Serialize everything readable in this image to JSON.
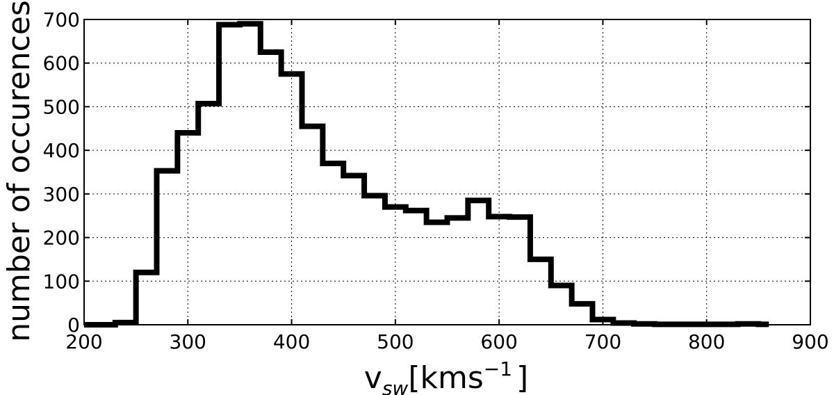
{
  "chart_data": {
    "type": "histogram",
    "title": "",
    "xlabel": {
      "base": "v",
      "subscript": "sw",
      "unit_open": "[kms",
      "unit_exp": "−1",
      "unit_close": "]"
    },
    "ylabel": "number of occurences",
    "xlim": [
      200,
      900
    ],
    "ylim": [
      0,
      700
    ],
    "x_ticks": [
      "200",
      "300",
      "400",
      "500",
      "600",
      "700",
      "800",
      "900"
    ],
    "y_ticks": [
      "0",
      "100",
      "200",
      "300",
      "400",
      "500",
      "600",
      "700"
    ],
    "grid": true,
    "bin_edges": [
      200,
      230,
      250,
      270,
      290,
      310,
      330,
      350,
      370,
      390,
      410,
      430,
      450,
      470,
      490,
      510,
      530,
      550,
      570,
      590,
      610,
      630,
      650,
      670,
      690,
      710,
      730,
      750,
      770,
      790,
      810,
      830,
      850,
      860
    ],
    "counts": [
      0,
      5,
      120,
      353,
      440,
      507,
      688,
      690,
      625,
      575,
      455,
      370,
      342,
      296,
      270,
      262,
      235,
      245,
      285,
      248,
      247,
      150,
      90,
      48,
      12,
      4,
      2,
      1,
      1,
      1,
      1,
      2,
      1
    ],
    "color": "#000000"
  }
}
